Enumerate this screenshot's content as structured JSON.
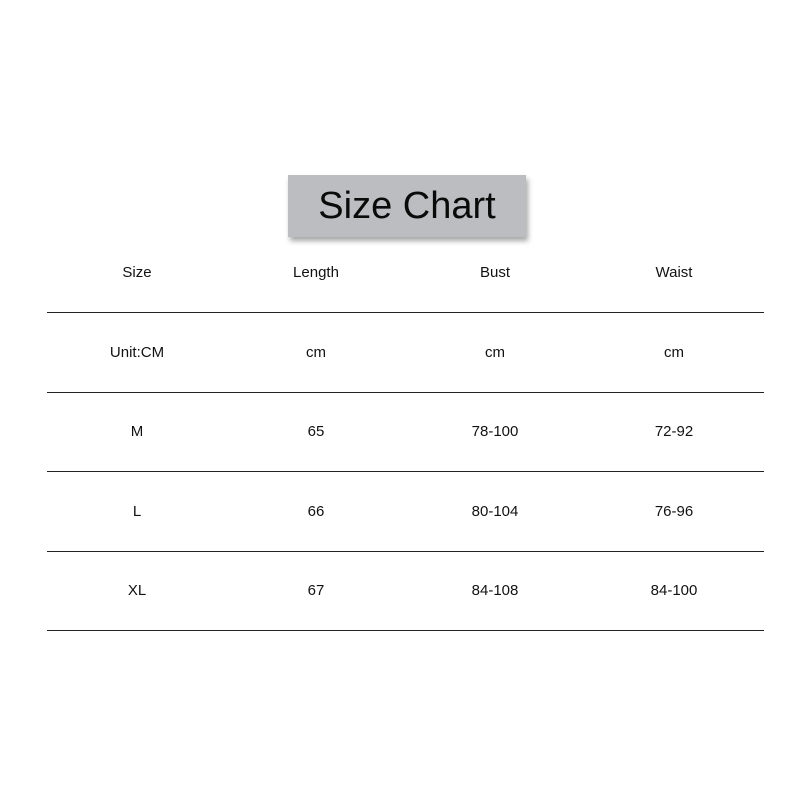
{
  "title": "Size Chart",
  "table": {
    "headers": [
      "Size",
      "Length",
      "Bust",
      "Waist"
    ],
    "rows": [
      [
        "Unit:CM",
        "cm",
        "cm",
        "cm"
      ],
      [
        "M",
        "65",
        "78-100",
        "72-92"
      ],
      [
        "L",
        "66",
        "80-104",
        "76-96"
      ],
      [
        "XL",
        "67",
        "84-108",
        "84-100"
      ]
    ]
  },
  "colors": {
    "title_background": "#bbbdc1",
    "rule_lines": "#222222"
  }
}
